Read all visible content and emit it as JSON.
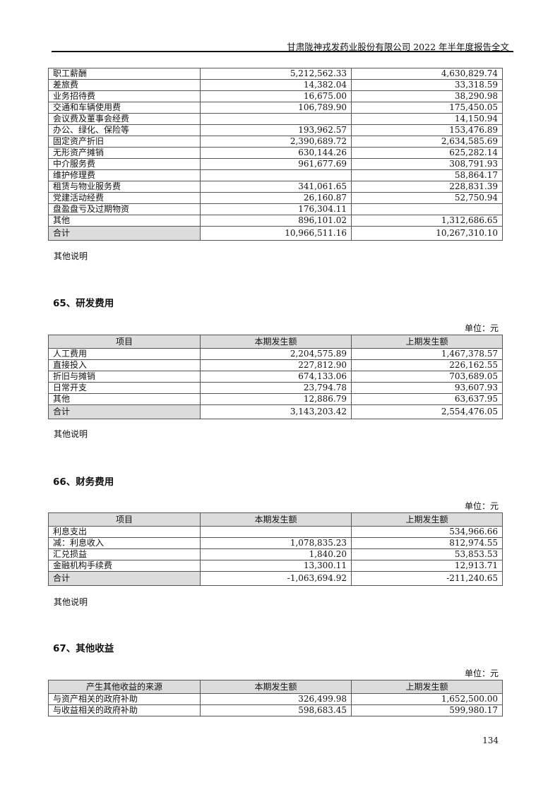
{
  "header": {
    "title": "甘肃陇神戎发药业股份有限公司 2022 年半年度报告全文"
  },
  "table_admin": {
    "rows": [
      [
        "职工薪酬",
        "5,212,562.33",
        "4,630,829.74"
      ],
      [
        "差旅费",
        "14,382.04",
        "33,318.59"
      ],
      [
        "业务招待费",
        "16,675.00",
        "38,290.98"
      ],
      [
        "交通和车辆使用费",
        "106,789.90",
        "175,450.05"
      ],
      [
        "会议费及董事会经费",
        "",
        "14,150.94"
      ],
      [
        "办公、绿化、保险等",
        "193,962.57",
        "153,476.89"
      ],
      [
        "固定资产折旧",
        "2,390,689.72",
        "2,634,585.69"
      ],
      [
        "无形资产摊销",
        "630,144.26",
        "625,282.14"
      ],
      [
        "中介服务费",
        "961,677.69",
        "308,791.93"
      ],
      [
        "维护修理费",
        "",
        "58,864.17"
      ],
      [
        "租赁与物业服务费",
        "341,061.65",
        "228,831.39"
      ],
      [
        "党建活动经费",
        "26,160.87",
        "52,750.94"
      ],
      [
        "盘盈盘亏及过期物资",
        "176,304.11",
        ""
      ],
      [
        "其他",
        "896,101.02",
        "1,312,686.65"
      ]
    ],
    "total": [
      "合计",
      "10,966,511.16",
      "10,267,310.10"
    ],
    "note": "其他说明"
  },
  "section65": {
    "title": "65、研发费用",
    "unit": "单位：元",
    "headers": [
      "项目",
      "本期发生额",
      "上期发生额"
    ],
    "rows": [
      [
        "人工费用",
        "2,204,575.89",
        "1,467,378.57"
      ],
      [
        "直接投入",
        "227,812.90",
        "226,162.55"
      ],
      [
        "折旧与摊销",
        "674,133.06",
        "703,689.05"
      ],
      [
        "日常开支",
        "23,794.78",
        "93,607.93"
      ],
      [
        "其他",
        "12,886.79",
        "63,637.95"
      ]
    ],
    "total": [
      "合计",
      "3,143,203.42",
      "2,554,476.05"
    ],
    "note": "其他说明"
  },
  "section66": {
    "title": "66、财务费用",
    "unit": "单位：元",
    "headers": [
      "项目",
      "本期发生额",
      "上期发生额"
    ],
    "rows": [
      [
        "利息支出",
        "",
        "534,966.66"
      ],
      [
        "减：利息收入",
        "1,078,835.23",
        "812,974.55"
      ],
      [
        "汇兑损益",
        "1,840.20",
        "53,853.53"
      ],
      [
        "金融机构手续费",
        "13,300.11",
        "12,913.71"
      ]
    ],
    "total": [
      "合计",
      "-1,063,694.92",
      "-211,240.65"
    ],
    "note": "其他说明"
  },
  "section67": {
    "title": "67、其他收益",
    "unit": "单位：元",
    "headers": [
      "产生其他收益的来源",
      "本期发生额",
      "上期发生额"
    ],
    "rows": [
      [
        "与资产相关的政府补助",
        "326,499.98",
        "1,652,500.00"
      ],
      [
        "与收益相关的政府补助",
        "598,683.45",
        "599,980.17"
      ]
    ]
  },
  "footer": {
    "page_number": "134"
  }
}
